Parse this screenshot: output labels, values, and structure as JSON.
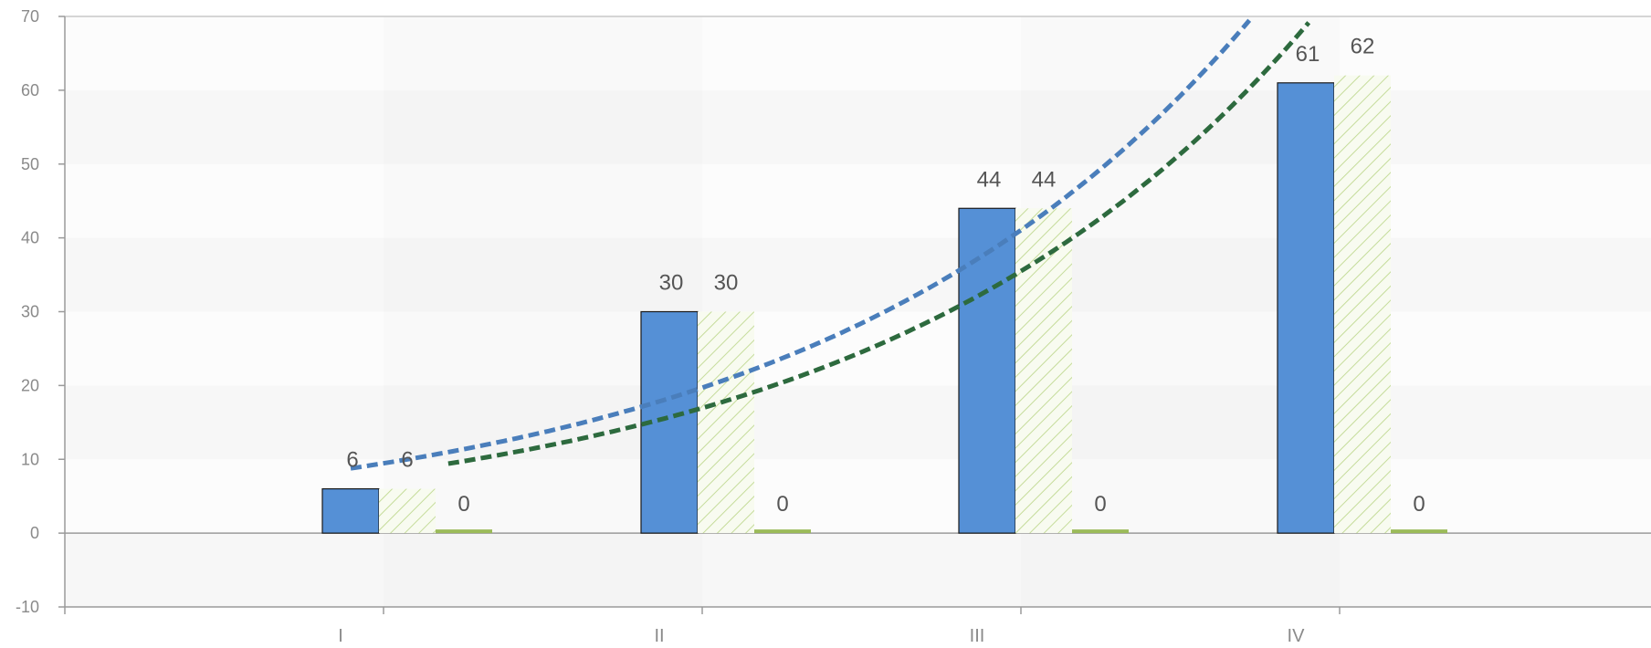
{
  "chart_data": {
    "type": "bar",
    "categories": [
      "I",
      "II",
      "III",
      "IV"
    ],
    "ylim": [
      -10,
      70
    ],
    "yticks": [
      -10,
      0,
      10,
      20,
      30,
      40,
      50,
      60,
      70
    ],
    "grid": "alternating horizontal bands",
    "legend": "none",
    "series": [
      {
        "values": [
          6,
          30,
          44,
          61
        ],
        "color": "#5590d6",
        "style": "solid"
      },
      {
        "values": [
          6,
          30,
          44,
          62
        ],
        "color": "#b9d58a",
        "style": "hatched"
      },
      {
        "values": [
          0,
          0,
          0,
          0
        ],
        "color": "#9bbb59",
        "style": "solid"
      }
    ],
    "trendlines": [
      {
        "type": "exponential",
        "of_series": 0,
        "color": "#4a7ebb",
        "style": "dashed"
      },
      {
        "type": "exponential",
        "of_series": 1,
        "color": "#2d6a3e",
        "style": "dashed"
      }
    ]
  }
}
